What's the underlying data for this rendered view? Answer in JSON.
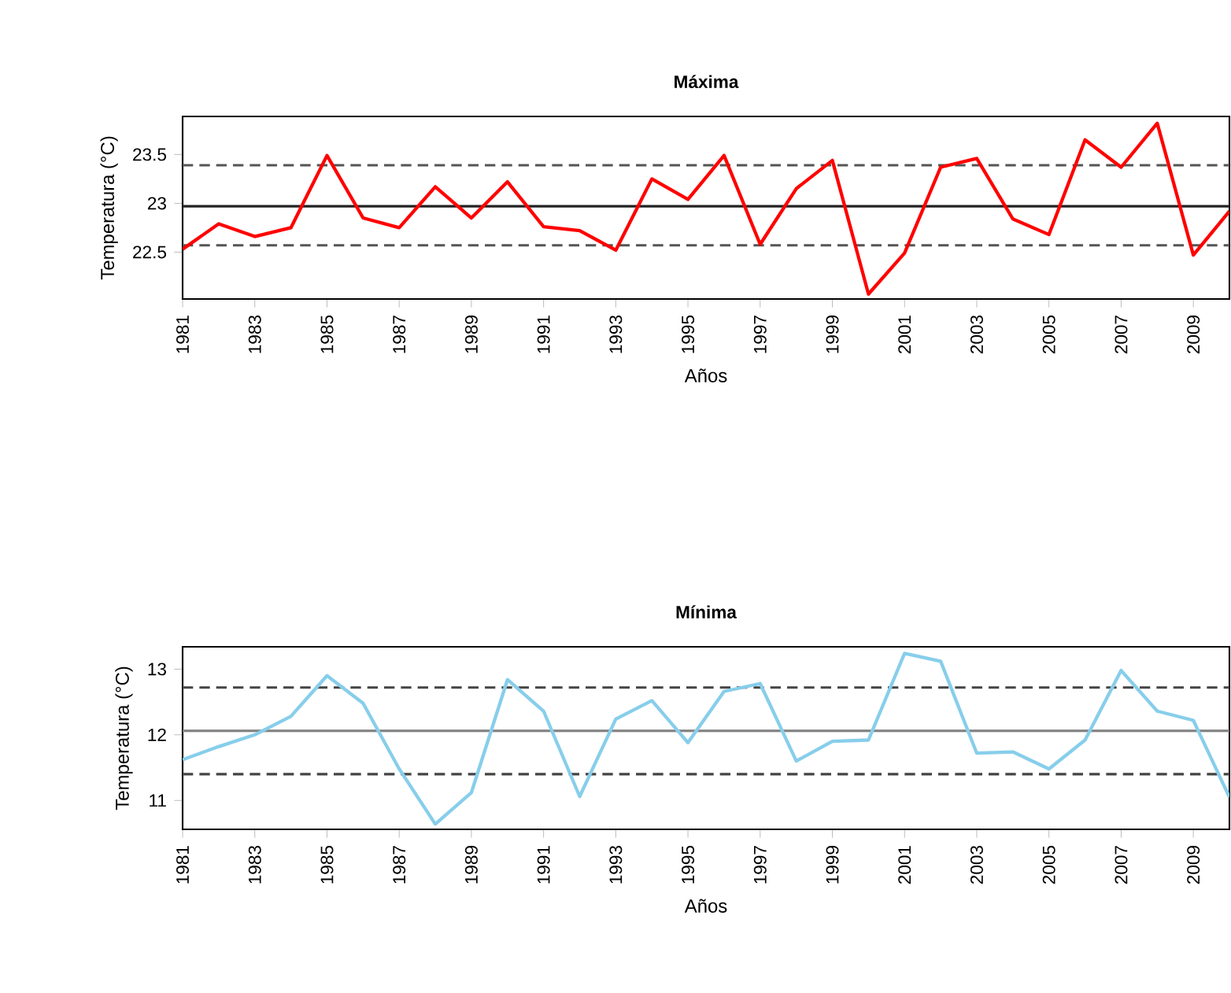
{
  "chart_data": [
    {
      "type": "line",
      "title": "Máxima",
      "xlabel": "Años",
      "ylabel": "Temperatura (°C)",
      "x": [
        1981,
        1982,
        1983,
        1984,
        1985,
        1986,
        1987,
        1988,
        1989,
        1990,
        1991,
        1992,
        1993,
        1994,
        1995,
        1996,
        1997,
        1998,
        1999,
        2000,
        2001,
        2002,
        2003,
        2004,
        2005,
        2006,
        2007,
        2008,
        2009,
        2010
      ],
      "series": [
        {
          "color": "#ff0000",
          "values": [
            22.53,
            22.79,
            22.66,
            22.75,
            23.49,
            22.85,
            22.75,
            23.17,
            22.85,
            23.22,
            22.76,
            22.72,
            22.52,
            23.25,
            23.04,
            23.49,
            22.58,
            23.15,
            23.44,
            22.07,
            22.49,
            23.37,
            23.46,
            22.84,
            22.68,
            23.65,
            23.37,
            23.82,
            22.47,
            22.92
          ]
        }
      ],
      "xlim": [
        1981,
        2010
      ],
      "xticks": [
        1981,
        1983,
        1985,
        1987,
        1989,
        1991,
        1993,
        1995,
        1997,
        1999,
        2001,
        2003,
        2005,
        2007,
        2009
      ],
      "ylim": [
        22.02,
        23.89
      ],
      "yticks": [
        22.5,
        23,
        23.5
      ],
      "ref_lines": [
        {
          "axis": "y",
          "value": 22.97,
          "color": "#222222",
          "line_style": "solid"
        },
        {
          "axis": "y",
          "value": 23.39,
          "color": "#555555",
          "line_style": "dashed"
        },
        {
          "axis": "y",
          "value": 22.57,
          "color": "#555555",
          "line_style": "dashed"
        }
      ]
    },
    {
      "type": "line",
      "title": "Mínima",
      "xlabel": "Años",
      "ylabel": "Temperatura (°C)",
      "x": [
        1981,
        1982,
        1983,
        1984,
        1985,
        1986,
        1987,
        1988,
        1989,
        1990,
        1991,
        1992,
        1993,
        1994,
        1995,
        1996,
        1997,
        1998,
        1999,
        2000,
        2001,
        2002,
        2003,
        2004,
        2005,
        2006,
        2007,
        2008,
        2009,
        2010
      ],
      "series": [
        {
          "color": "#87ceeb",
          "values": [
            11.62,
            11.82,
            12.0,
            12.28,
            12.9,
            12.48,
            11.48,
            10.64,
            11.12,
            12.84,
            12.36,
            11.06,
            12.24,
            12.52,
            11.88,
            12.66,
            12.78,
            11.6,
            11.9,
            11.92,
            13.24,
            13.12,
            11.72,
            11.74,
            11.48,
            11.92,
            12.98,
            12.36,
            12.22,
            11.05
          ]
        }
      ],
      "xlim": [
        1981,
        2010
      ],
      "xticks": [
        1981,
        1983,
        1985,
        1987,
        1989,
        1991,
        1993,
        1995,
        1997,
        1999,
        2001,
        2003,
        2005,
        2007,
        2009
      ],
      "ylim": [
        10.56,
        13.34
      ],
      "yticks": [
        11,
        12,
        13
      ],
      "ref_lines": [
        {
          "axis": "y",
          "value": 12.06,
          "color": "#808080",
          "line_style": "solid"
        },
        {
          "axis": "y",
          "value": 12.72,
          "color": "#444444",
          "line_style": "dashed"
        },
        {
          "axis": "y",
          "value": 11.4,
          "color": "#444444",
          "line_style": "dashed"
        }
      ]
    }
  ]
}
